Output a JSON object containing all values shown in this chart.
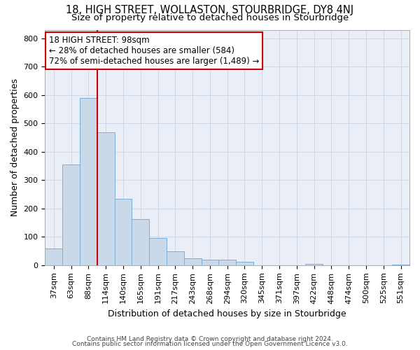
{
  "title": "18, HIGH STREET, WOLLASTON, STOURBRIDGE, DY8 4NJ",
  "subtitle": "Size of property relative to detached houses in Stourbridge",
  "xlabel": "Distribution of detached houses by size in Stourbridge",
  "ylabel": "Number of detached properties",
  "footer_line1": "Contains HM Land Registry data © Crown copyright and database right 2024.",
  "footer_line2": "Contains public sector information licensed under the Open Government Licence v3.0.",
  "bar_labels": [
    "37sqm",
    "63sqm",
    "88sqm",
    "114sqm",
    "140sqm",
    "165sqm",
    "191sqm",
    "217sqm",
    "243sqm",
    "268sqm",
    "294sqm",
    "320sqm",
    "345sqm",
    "371sqm",
    "397sqm",
    "422sqm",
    "448sqm",
    "474sqm",
    "500sqm",
    "525sqm",
    "551sqm"
  ],
  "bar_values": [
    58,
    355,
    590,
    468,
    235,
    163,
    95,
    48,
    25,
    20,
    20,
    13,
    0,
    0,
    0,
    5,
    0,
    0,
    0,
    0,
    3
  ],
  "bar_color": "#c9d9ea",
  "bar_edge_color": "#7fadd4",
  "grid_color": "#d0d8e8",
  "background_color": "#eaeff7",
  "ref_line_x": 2.5,
  "ref_line_color": "#cc0000",
  "annotation_line1": "18 HIGH STREET: 98sqm",
  "annotation_line2": "← 28% of detached houses are smaller (584)",
  "annotation_line3": "72% of semi-detached houses are larger (1,489) →",
  "annotation_box_color": "#cc0000",
  "ylim": [
    0,
    830
  ],
  "yticks": [
    0,
    100,
    200,
    300,
    400,
    500,
    600,
    700,
    800
  ],
  "title_fontsize": 10.5,
  "subtitle_fontsize": 9.5,
  "axis_label_fontsize": 9,
  "tick_fontsize": 8,
  "footer_fontsize": 6.5
}
